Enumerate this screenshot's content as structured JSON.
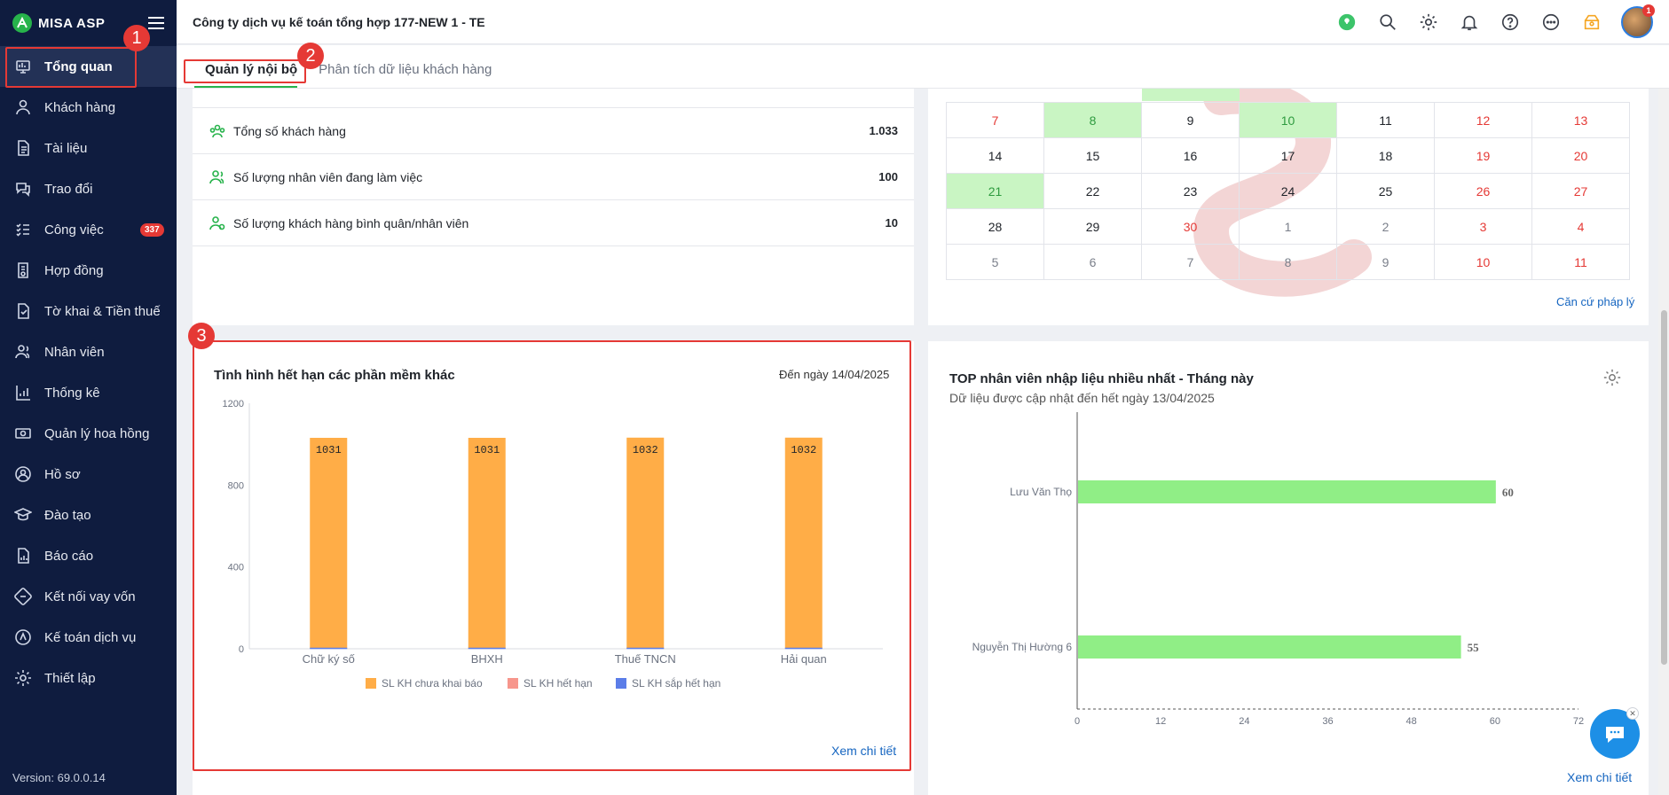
{
  "app": {
    "logo": "MISA ASP",
    "version": "Version: 69.0.0.14"
  },
  "header": {
    "company": "Công ty dịch vụ kế toán tổng hợp 177-NEW 1 - TE",
    "avatar_badge": "1"
  },
  "sidebar": {
    "items": [
      {
        "label": "Tổng quan",
        "icon": "dashboard-icon"
      },
      {
        "label": "Khách hàng",
        "icon": "user-icon"
      },
      {
        "label": "Tài liệu",
        "icon": "document-icon"
      },
      {
        "label": "Trao đổi",
        "icon": "chat-icon"
      },
      {
        "label": "Công việc",
        "icon": "tasks-icon",
        "badge": "337"
      },
      {
        "label": "Hợp đồng",
        "icon": "contract-icon"
      },
      {
        "label": "Tờ khai & Tiền thuế",
        "icon": "tax-icon"
      },
      {
        "label": "Nhân viên",
        "icon": "employees-icon"
      },
      {
        "label": "Thống kê",
        "icon": "stats-icon"
      },
      {
        "label": "Quản lý hoa hồng",
        "icon": "commission-icon"
      },
      {
        "label": "Hồ sơ",
        "icon": "profile-icon"
      },
      {
        "label": "Đào tạo",
        "icon": "training-icon"
      },
      {
        "label": "Báo cáo",
        "icon": "report-icon"
      },
      {
        "label": "Kết nối vay vốn",
        "icon": "loan-icon"
      },
      {
        "label": "Kế toán dịch vụ",
        "icon": "accounting-icon"
      },
      {
        "label": "Thiết lập",
        "icon": "settings-icon"
      }
    ]
  },
  "tabs": [
    {
      "label": "Quản lý nội bộ"
    },
    {
      "label": "Phân tích dữ liệu khách hàng"
    }
  ],
  "callouts": [
    "1",
    "2",
    "3"
  ],
  "stats": {
    "rows": [
      {
        "label": "Tổng số khách hàng",
        "value": "1.033"
      },
      {
        "label": "Số lượng nhân viên đang làm việc",
        "value": "100"
      },
      {
        "label": "Số lượng khách hàng bình quân/nhân viên",
        "value": "10"
      }
    ]
  },
  "calendar": {
    "weeks": [
      [
        "7",
        "8",
        "9",
        "10",
        "11",
        "12",
        "13"
      ],
      [
        "14",
        "15",
        "16",
        "17",
        "18",
        "19",
        "20"
      ],
      [
        "21",
        "22",
        "23",
        "24",
        "25",
        "26",
        "27"
      ],
      [
        "28",
        "29",
        "30",
        "1",
        "2",
        "3",
        "4"
      ],
      [
        "5",
        "6",
        "7",
        "8",
        "9",
        "10",
        "11"
      ]
    ],
    "link": "Căn cứ pháp lý"
  },
  "expiry_chart": {
    "title": "Tình hình hết hạn các phần mềm khác",
    "date": "Đến ngày 14/04/2025",
    "link": "Xem chi tiết"
  },
  "top_chart": {
    "title": "TOP nhân viên nhập liệu nhiều nhất - Tháng này",
    "subtitle": "Dữ liệu được cập nhật đến hết ngày 13/04/2025",
    "link": "Xem chi tiết"
  },
  "chart_data": [
    {
      "type": "bar",
      "title": "Tình hình hết hạn các phần mềm khác",
      "categories": [
        "Chữ ký số",
        "BHXH",
        "Thuế TNCN",
        "Hải quan"
      ],
      "series": [
        {
          "name": "SL KH chưa khai báo",
          "values": [
            1031,
            1031,
            1032,
            1032
          ],
          "color": "#ffad47"
        },
        {
          "name": "SL KH hết hạn",
          "values": [
            0,
            0,
            0,
            0
          ],
          "color": "#f7968c"
        },
        {
          "name": "SL KH sắp hết hạn",
          "values": [
            1,
            1,
            1,
            1
          ],
          "color": "#5b7de8"
        }
      ],
      "yticks": [
        "0",
        "400",
        "800",
        "1200"
      ],
      "ylim": [
        0,
        1200
      ],
      "legend": "bottom",
      "grid": false
    },
    {
      "type": "bar",
      "orientation": "horizontal",
      "title": "TOP nhân viên nhập liệu nhiều nhất - Tháng này",
      "categories": [
        "Lưu Văn Thọ",
        "Nguyễn Thị Hường 6"
      ],
      "values": [
        60,
        55
      ],
      "color": "#90ee86",
      "xticks": [
        "0",
        "12",
        "24",
        "36",
        "48",
        "60",
        "72"
      ],
      "xlim": [
        0,
        72
      ]
    }
  ]
}
